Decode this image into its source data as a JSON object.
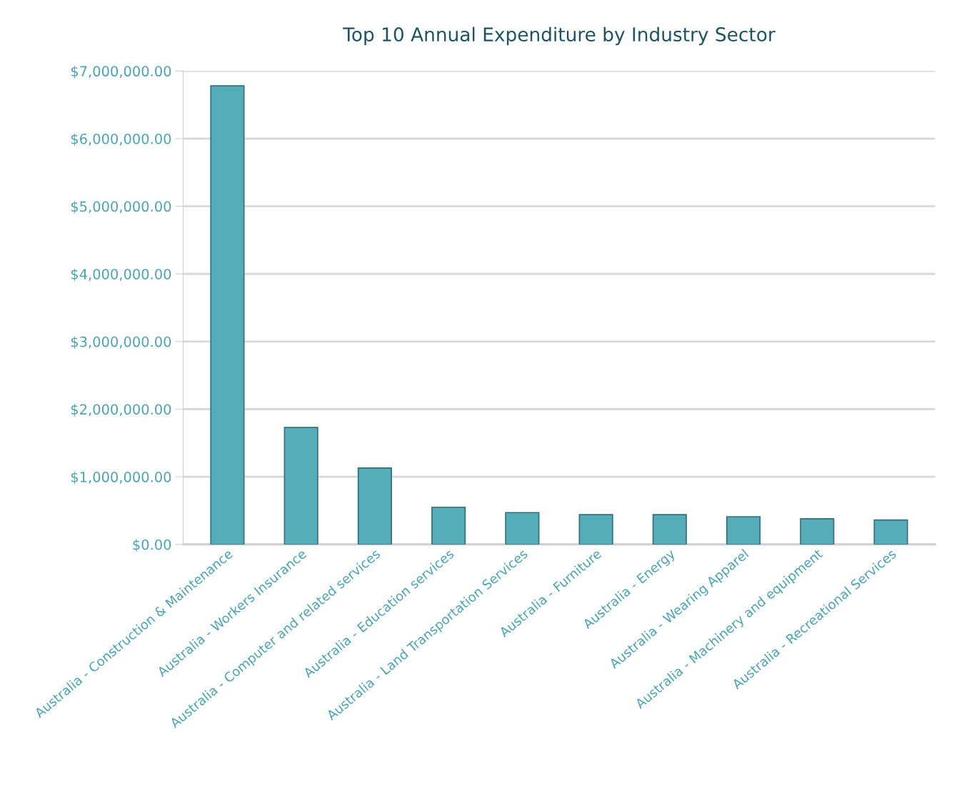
{
  "chart_data": {
    "type": "bar",
    "title": "Top 10 Annual Expenditure by Industry Sector",
    "categories": [
      "Australia - Construction & Maintenance",
      "Australia - Workers Insurance",
      "Australia - Computer and related services",
      "Australia - Education services",
      "Australia - Land Transportation Services",
      "Australia - Furniture",
      "Australia - Energy",
      "Australia - Wearing Apparel",
      "Australia - Machinery and equipment",
      "Australia - Recreational Services"
    ],
    "values": [
      6780000,
      1730000,
      1130000,
      550000,
      470000,
      440000,
      440000,
      410000,
      380000,
      360000
    ],
    "color": "#55adb9",
    "ylim": [
      0,
      7000000
    ],
    "yticks": [
      {
        "value": 0,
        "label": "$0.00"
      },
      {
        "value": 1000000,
        "label": "$1,000,000.00"
      },
      {
        "value": 2000000,
        "label": "$2,000,000.00"
      },
      {
        "value": 3000000,
        "label": "$3,000,000.00"
      },
      {
        "value": 4000000,
        "label": "$4,000,000.00"
      },
      {
        "value": 5000000,
        "label": "$5,000,000.00"
      },
      {
        "value": 6000000,
        "label": "$6,000,000.00"
      },
      {
        "value": 7000000,
        "label": "$7,000,000.00"
      }
    ],
    "grid": "y",
    "legend": false
  }
}
